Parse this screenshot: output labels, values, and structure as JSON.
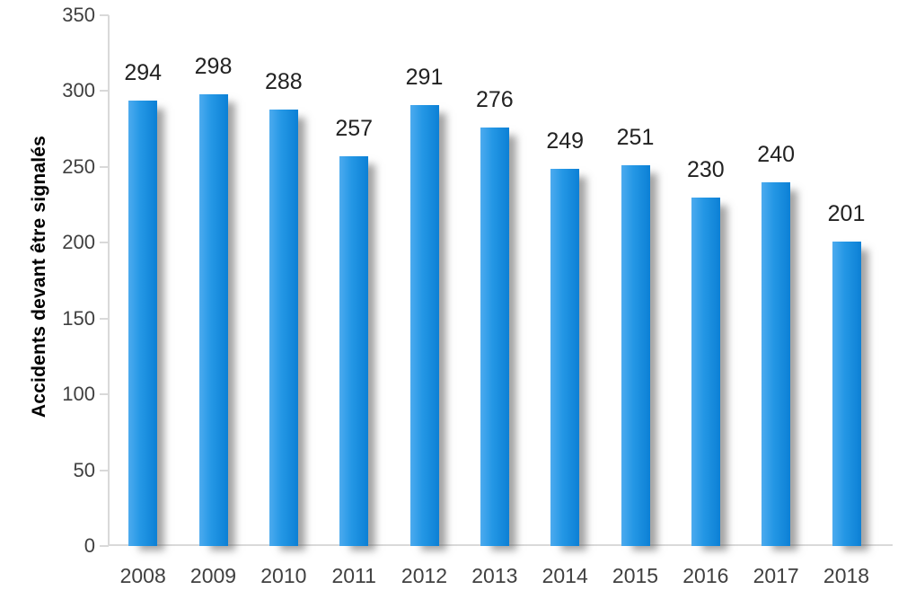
{
  "chart_data": {
    "type": "bar",
    "categories": [
      "2008",
      "2009",
      "2010",
      "2011",
      "2012",
      "2013",
      "2014",
      "2015",
      "2016",
      "2017",
      "2018"
    ],
    "values": [
      294,
      298,
      288,
      257,
      291,
      276,
      249,
      251,
      230,
      240,
      201
    ],
    "title": "",
    "xlabel": "",
    "ylabel": "Accidents devant être signalés",
    "ylim": [
      0,
      350
    ],
    "yticks": [
      0,
      50,
      100,
      150,
      200,
      250,
      300,
      350
    ],
    "grid": false,
    "legend": false,
    "data_labels": true,
    "colors": {
      "bar_gradient_left": "#4dabef",
      "bar_gradient_mid": "#2497e5",
      "bar_gradient_right": "#0c80d5",
      "axis_line": "#d9d9d9",
      "tick_label": "#404040",
      "value_label": "#222222",
      "y_title": "#000000",
      "background": "#ffffff"
    }
  }
}
